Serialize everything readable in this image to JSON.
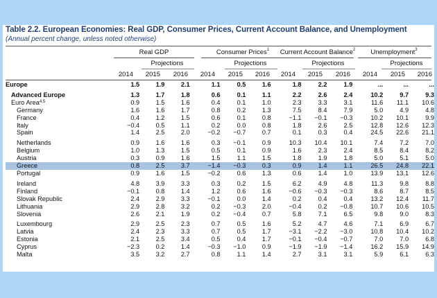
{
  "title": "Table 2.2. European Economies: Real GDP, Consumer Prices, Current Account Balance, and Unemployment",
  "subtitle": "(Annual percent change, unless noted otherwise)",
  "groups": [
    {
      "label": "Real GDP",
      "sup": ""
    },
    {
      "label": "Consumer Prices",
      "sup": "1"
    },
    {
      "label": "Current Account Balance",
      "sup": "2"
    },
    {
      "label": "Unemployment",
      "sup": "3"
    }
  ],
  "projections_label": "Projections",
  "years": [
    "2014",
    "2015",
    "2016"
  ],
  "rows": [
    {
      "name": "Europe",
      "sup": "",
      "level": 1,
      "bold": true,
      "values": [
        "1.5",
        "1.9",
        "2.1",
        "1.1",
        "0.5",
        "1.6",
        "1.8",
        "2.2",
        "1.9",
        "...",
        "...",
        "..."
      ]
    },
    {
      "spacer": true
    },
    {
      "name": "Advanced Europe",
      "sup": "",
      "level": 2,
      "bold": true,
      "values": [
        "1.3",
        "1.7",
        "1.8",
        "0.6",
        "0.1",
        "1.1",
        "2.2",
        "2.6",
        "2.4",
        "10.2",
        "9.7",
        "9.3"
      ]
    },
    {
      "name": "Euro Area",
      "sup": "4,5",
      "level": 2,
      "bold": false,
      "values": [
        "0.9",
        "1.5",
        "1.6",
        "0.4",
        "0.1",
        "1.0",
        "2.3",
        "3.3",
        "3.1",
        "11.6",
        "11.1",
        "10.6"
      ]
    },
    {
      "name": "Germany",
      "sup": "",
      "level": 3,
      "bold": false,
      "values": [
        "1.6",
        "1.6",
        "1.7",
        "0.8",
        "0.2",
        "1.3",
        "7.5",
        "8.4",
        "7.9",
        "5.0",
        "4.9",
        "4.8"
      ]
    },
    {
      "name": "France",
      "sup": "",
      "level": 3,
      "bold": false,
      "values": [
        "0.4",
        "1.2",
        "1.5",
        "0.6",
        "0.1",
        "0.8",
        "−1.1",
        "−0.1",
        "−0.3",
        "10.2",
        "10.1",
        "9.9"
      ]
    },
    {
      "name": "Italy",
      "sup": "",
      "level": 3,
      "bold": false,
      "values": [
        "−0.4",
        "0.5",
        "1.1",
        "0.2",
        "0.0",
        "0.8",
        "1.8",
        "2.6",
        "2.5",
        "12.8",
        "12.6",
        "12.3"
      ]
    },
    {
      "name": "Spain",
      "sup": "",
      "level": 3,
      "bold": false,
      "values": [
        "1.4",
        "2.5",
        "2.0",
        "−0.2",
        "−0.7",
        "0.7",
        "0.1",
        "0.3",
        "0.4",
        "24.5",
        "22.6",
        "21.1"
      ]
    },
    {
      "spacer": true
    },
    {
      "name": "Netherlands",
      "sup": "",
      "level": 3,
      "bold": false,
      "values": [
        "0.9",
        "1.6",
        "1.6",
        "0.3",
        "−0.1",
        "0.9",
        "10.3",
        "10.4",
        "10.1",
        "7.4",
        "7.2",
        "7.0"
      ]
    },
    {
      "name": "Belgium",
      "sup": "",
      "level": 3,
      "bold": false,
      "values": [
        "1.0",
        "1.3",
        "1.5",
        "0.5",
        "0.1",
        "0.9",
        "1.6",
        "2.3",
        "2.4",
        "8.5",
        "8.4",
        "8.2"
      ]
    },
    {
      "name": "Austria",
      "sup": "",
      "level": 3,
      "bold": false,
      "values": [
        "0.3",
        "0.9",
        "1.6",
        "1.5",
        "1.1",
        "1.5",
        "1.8",
        "1.9",
        "1.8",
        "5.0",
        "5.1",
        "5.0"
      ]
    },
    {
      "name": "Greece",
      "sup": "",
      "level": 3,
      "bold": false,
      "highlight": true,
      "values": [
        "0.8",
        "2.5",
        "3.7",
        "−1.4",
        "−0.3",
        "0.3",
        "0.9",
        "1.4",
        "1.1",
        "26.5",
        "24.8",
        "22.1"
      ]
    },
    {
      "name": "Portugal",
      "sup": "",
      "level": 3,
      "bold": false,
      "values": [
        "0.9",
        "1.6",
        "1.5",
        "−0.2",
        "0.6",
        "1.3",
        "0.6",
        "1.4",
        "1.0",
        "13.9",
        "13.1",
        "12.6"
      ]
    },
    {
      "spacer": true
    },
    {
      "name": "Ireland",
      "sup": "",
      "level": 3,
      "bold": false,
      "values": [
        "4.8",
        "3.9",
        "3.3",
        "0.3",
        "0.2",
        "1.5",
        "6.2",
        "4.9",
        "4.8",
        "11.3",
        "9.8",
        "8.8"
      ]
    },
    {
      "name": "Finland",
      "sup": "",
      "level": 3,
      "bold": false,
      "values": [
        "−0.1",
        "0.8",
        "1.4",
        "1.2",
        "0.6",
        "1.6",
        "−0.6",
        "−0.3",
        "−0.3",
        "8.6",
        "8.7",
        "8.5"
      ]
    },
    {
      "name": "Slovak Republic",
      "sup": "",
      "level": 3,
      "bold": false,
      "values": [
        "2.4",
        "2.9",
        "3.3",
        "−0.1",
        "0.0",
        "1.4",
        "0.2",
        "0.4",
        "0.4",
        "13.2",
        "12.4",
        "11.7"
      ]
    },
    {
      "name": "Lithuania",
      "sup": "",
      "level": 3,
      "bold": false,
      "values": [
        "2.9",
        "2.8",
        "3.2",
        "0.2",
        "−0.3",
        "2.0",
        "−0.4",
        "0.2",
        "−0.8",
        "10.7",
        "10.6",
        "10.5"
      ]
    },
    {
      "name": "Slovenia",
      "sup": "",
      "level": 3,
      "bold": false,
      "values": [
        "2.6",
        "2.1",
        "1.9",
        "0.2",
        "−0.4",
        "0.7",
        "5.8",
        "7.1",
        "6.5",
        "9.8",
        "9.0",
        "8.3"
      ]
    },
    {
      "spacer": true
    },
    {
      "name": "Luxembourg",
      "sup": "",
      "level": 3,
      "bold": false,
      "values": [
        "2.9",
        "2.5",
        "2.3",
        "0.7",
        "0.5",
        "1.6",
        "5.2",
        "4.7",
        "4.6",
        "7.1",
        "6.9",
        "6.7"
      ]
    },
    {
      "name": "Latvia",
      "sup": "",
      "level": 3,
      "bold": false,
      "values": [
        "2.4",
        "2.3",
        "3.3",
        "0.7",
        "0.5",
        "1.7",
        "−3.1",
        "−2.2",
        "−3.0",
        "10.8",
        "10.4",
        "10.2"
      ]
    },
    {
      "name": "Estonia",
      "sup": "",
      "level": 3,
      "bold": false,
      "values": [
        "2.1",
        "2.5",
        "3.4",
        "0.5",
        "0.4",
        "1.7",
        "−0.1",
        "−0.4",
        "−0.7",
        "7.0",
        "7.0",
        "6.8"
      ]
    },
    {
      "name": "Cyprus",
      "sup": "",
      "level": 3,
      "bold": false,
      "values": [
        "−2.3",
        "0.2",
        "1.4",
        "−0.3",
        "−1.0",
        "0.9",
        "−1.9",
        "−1.9",
        "−1.4",
        "16.2",
        "15.9",
        "14.9"
      ]
    },
    {
      "name": "Malta",
      "sup": "",
      "level": 3,
      "bold": false,
      "values": [
        "3.5",
        "3.2",
        "2.7",
        "0.8",
        "1.1",
        "1.4",
        "2.7",
        "3.1",
        "3.1",
        "5.9",
        "6.1",
        "6.3"
      ]
    }
  ]
}
